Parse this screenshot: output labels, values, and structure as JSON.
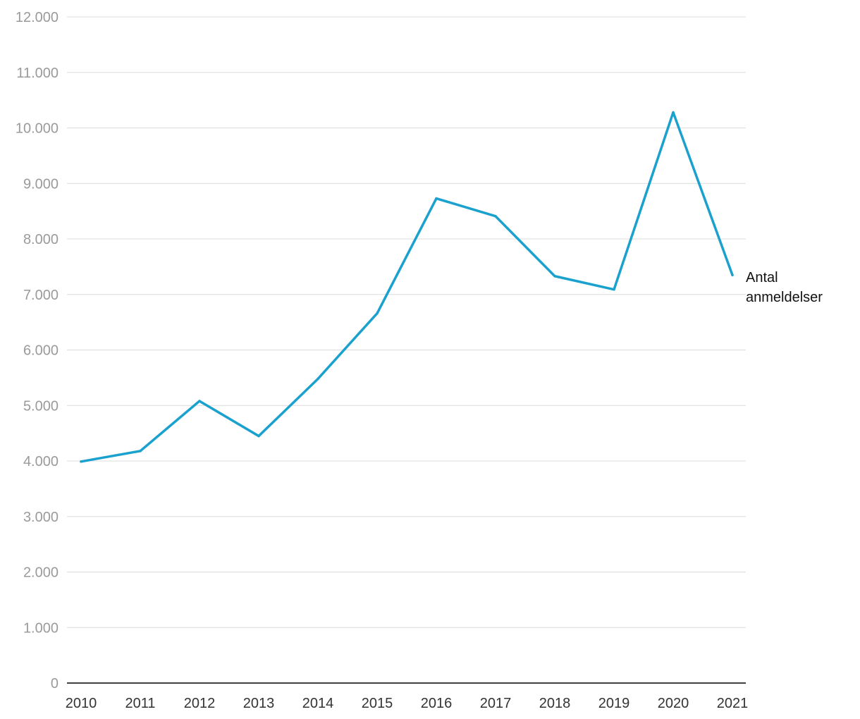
{
  "chart_data": {
    "type": "line",
    "title": "",
    "xlabel": "",
    "ylabel": "",
    "x": [
      "2010",
      "2011",
      "2012",
      "2013",
      "2014",
      "2015",
      "2016",
      "2017",
      "2018",
      "2019",
      "2020",
      "2021"
    ],
    "series": [
      {
        "name_lines": [
          "Antal",
          "anmeldelser"
        ],
        "color": "#1aa1cd",
        "values": [
          3990,
          4180,
          5080,
          4450,
          5480,
          6660,
          8730,
          8410,
          7330,
          7090,
          10280,
          7350
        ]
      }
    ],
    "ylim": [
      0,
      12000
    ],
    "yticks": [
      0,
      1000,
      2000,
      3000,
      4000,
      5000,
      6000,
      7000,
      8000,
      9000,
      10000,
      11000,
      12000
    ],
    "ytick_labels": [
      "0",
      "1.000",
      "2.000",
      "3.000",
      "4.000",
      "5.000",
      "6.000",
      "7.000",
      "8.000",
      "9.000",
      "10.000",
      "11.000",
      "12.000"
    ],
    "grid": true,
    "legend": "end-of-line label"
  }
}
